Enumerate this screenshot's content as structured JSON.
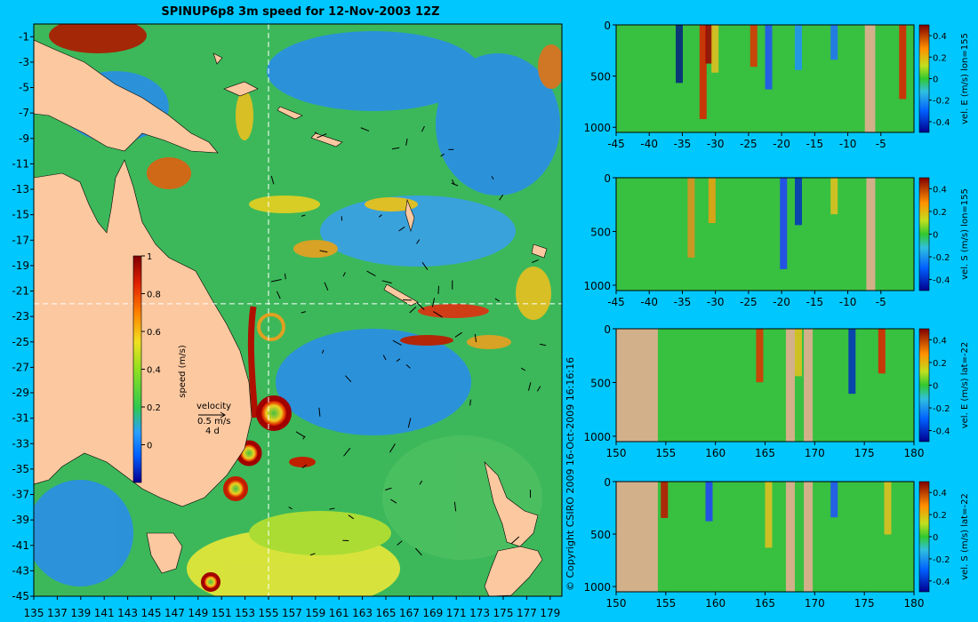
{
  "map": {
    "title": "SPINUP6p8 3m speed for 12-Nov-2003 12Z",
    "lon_ticks": [
      135,
      137,
      139,
      141,
      143,
      145,
      147,
      149,
      151,
      153,
      155,
      157,
      159,
      161,
      163,
      165,
      167,
      169,
      171,
      173,
      175,
      177,
      179
    ],
    "lat_ticks": [
      -1,
      -3,
      -5,
      -7,
      -9,
      -11,
      -13,
      -15,
      -17,
      -19,
      -21,
      -23,
      -25,
      -27,
      -29,
      -31,
      -33,
      -35,
      -37,
      -39,
      -41,
      -43,
      -45
    ],
    "lon_range": [
      135,
      180
    ],
    "lat_range": [
      -45,
      0
    ],
    "section_lon": 155,
    "section_lat": -22,
    "colorbar": {
      "label": "speed (m/s)",
      "ticks": [
        "1",
        "0.8",
        "0.6",
        "0.4",
        "0.2",
        "0"
      ],
      "range": [
        -0.2,
        1
      ]
    },
    "velocity_legend": {
      "title": "velocity",
      "scale": "0.5 m/s",
      "interval": "4 d"
    },
    "copyright": "© Copyright CSIRO 2009  16-Oct-2009 16:16:16",
    "colors": {
      "land": "#fcc8a0",
      "ocean_low": "#1e90e0",
      "ocean_mid": "#3cc83c",
      "ocean_high": "#f0e028",
      "jet": "#c81e00",
      "background": "#00c8ff"
    }
  },
  "sections": [
    {
      "label": "vel. E (m/s) lon=155",
      "x_ticks": [
        "-45",
        "-40",
        "-35",
        "-30",
        "-25",
        "-20",
        "-15",
        "-10",
        "-5"
      ],
      "x_range": [
        -45,
        0
      ],
      "y_ticks": [
        "0",
        "500",
        "1000"
      ],
      "cb_ticks": [
        "0.4",
        "0.2",
        "0",
        "-0.2",
        "-0.4"
      ]
    },
    {
      "label": "vel. S (m/s) lon=155",
      "x_ticks": [
        "-45",
        "-40",
        "-35",
        "-30",
        "-25",
        "-20",
        "-15",
        "-10",
        "-5"
      ],
      "x_range": [
        -45,
        0
      ],
      "y_ticks": [
        "0",
        "500",
        "1000"
      ],
      "cb_ticks": [
        "0.4",
        "0.2",
        "0",
        "-0.2",
        "-0.4"
      ]
    },
    {
      "label": "vel. E (m/s) lat=-22",
      "x_ticks": [
        "150",
        "155",
        "160",
        "165",
        "170",
        "175",
        "180"
      ],
      "x_range": [
        150,
        180
      ],
      "y_ticks": [
        "0",
        "500",
        "1000"
      ],
      "cb_ticks": [
        "0.4",
        "0.2",
        "0",
        "-0.2",
        "-0.4"
      ]
    },
    {
      "label": "vel. S (m/s) lat=-22",
      "x_ticks": [
        "150",
        "155",
        "160",
        "165",
        "170",
        "175",
        "180"
      ],
      "x_range": [
        150,
        180
      ],
      "y_ticks": [
        "0",
        "500",
        "1000"
      ],
      "cb_ticks": [
        "0.4",
        "0.2",
        "0",
        "-0.2",
        "-0.4"
      ]
    }
  ]
}
